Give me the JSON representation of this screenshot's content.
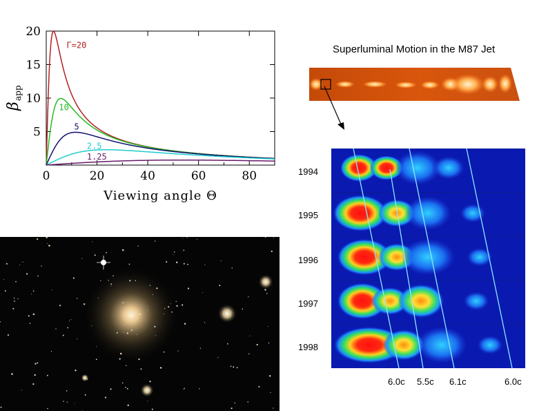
{
  "chart_data": {
    "type": "line",
    "xlabel": "Viewing angle Θ",
    "ylabel": "β",
    "ylabel_sub": "app",
    "xlim": [
      0,
      90
    ],
    "ylim": [
      0,
      20
    ],
    "xticks": [
      0,
      20,
      40,
      60,
      80
    ],
    "yticks": [
      5,
      10,
      15,
      20
    ],
    "series": [
      {
        "name": "Γ=20",
        "gamma": 20,
        "color": "#b02020"
      },
      {
        "name": "10",
        "gamma": 10,
        "color": "#22bb22"
      },
      {
        "name": "5",
        "gamma": 5,
        "color": "#101070"
      },
      {
        "name": "2.5",
        "gamma": 2.5,
        "color": "#22cccc"
      },
      {
        "name": "1.25",
        "gamma": 1.25,
        "color": "#6a1a6a"
      }
    ]
  },
  "right_panel": {
    "title": "Superluminal Motion in the M87 Jet",
    "years": [
      "1994",
      "1995",
      "1996",
      "1997",
      "1998"
    ],
    "speeds": [
      "6.0c",
      "5.5c",
      "6.1c",
      "6.0c"
    ]
  },
  "colors": {
    "jet_orange": "#e85a10",
    "vlbi_blue": "#0a1ab0",
    "galaxy_bg": "#050505"
  }
}
